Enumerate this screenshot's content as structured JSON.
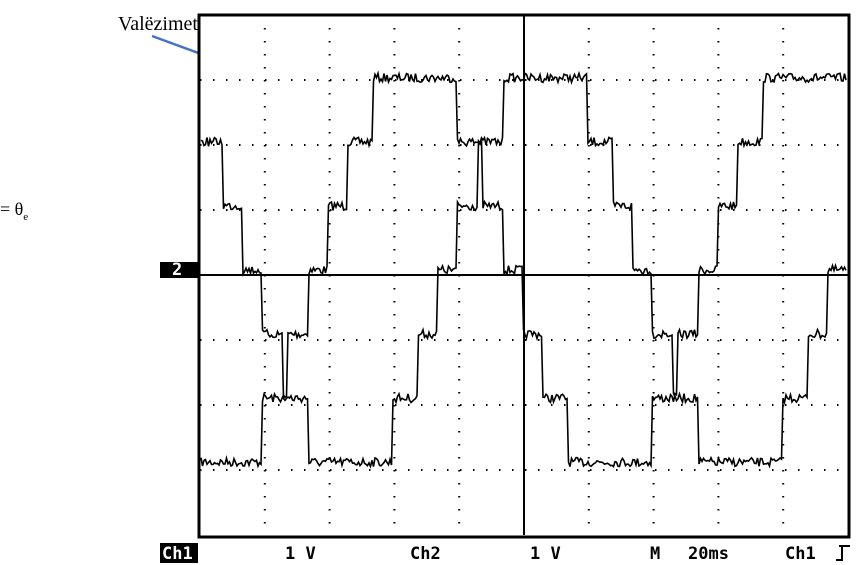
{
  "annotation": {
    "label": "Valëzimet"
  },
  "formula": {
    "text": "= θ",
    "subscript": "e"
  },
  "scope": {
    "ground_marker": "2",
    "status_bar": {
      "ch1_label": "Ch1",
      "ch1_scale": "1 V",
      "ch2_label": "Ch2",
      "ch2_scale": "1 V",
      "mode": "M",
      "timebase": "20ms",
      "trigger_source": "Ch1"
    }
  }
}
